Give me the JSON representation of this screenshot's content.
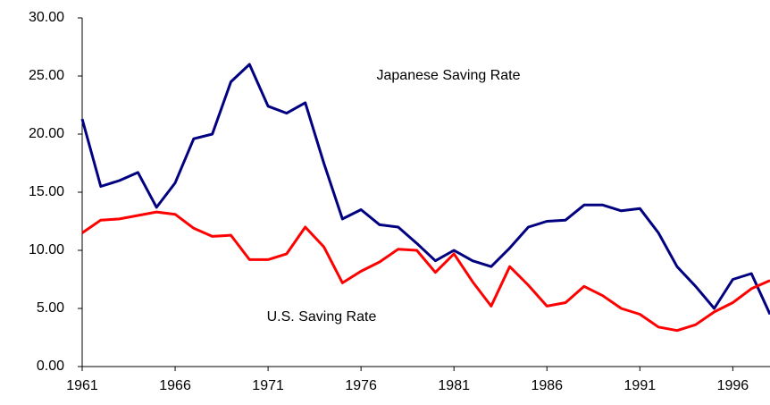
{
  "chart_data": {
    "type": "line",
    "x": [
      1961,
      1962,
      1963,
      1964,
      1965,
      1966,
      1967,
      1968,
      1969,
      1970,
      1971,
      1972,
      1973,
      1974,
      1975,
      1976,
      1977,
      1978,
      1979,
      1980,
      1981,
      1982,
      1983,
      1984,
      1985,
      1986,
      1987,
      1988,
      1989,
      1990,
      1991,
      1992,
      1993,
      1994,
      1995,
      1996,
      1997,
      1998
    ],
    "series": [
      {
        "name": "Japanese Saving Rate",
        "color": "#000080",
        "values": [
          21.3,
          15.5,
          16.0,
          16.7,
          13.7,
          15.8,
          19.6,
          20.0,
          24.5,
          26.0,
          22.4,
          21.8,
          22.7,
          17.5,
          12.7,
          13.5,
          12.2,
          12.0,
          10.6,
          9.1,
          10.0,
          9.1,
          8.6,
          10.2,
          12.0,
          12.5,
          12.6,
          13.9,
          13.9,
          13.4,
          13.6,
          11.5,
          8.6,
          6.9,
          5.0,
          7.5,
          8.0,
          4.5
        ]
      },
      {
        "name": "U.S. Saving Rate",
        "color": "#ff0000",
        "values": [
          11.5,
          12.6,
          12.7,
          13.0,
          13.3,
          13.1,
          11.9,
          11.2,
          11.3,
          9.2,
          9.2,
          9.7,
          12.0,
          10.3,
          7.2,
          8.2,
          9.0,
          10.1,
          10.0,
          8.1,
          9.7,
          7.3,
          5.2,
          8.6,
          7.0,
          5.2,
          5.5,
          6.9,
          6.1,
          5.0,
          4.5,
          3.4,
          3.1,
          3.6,
          4.7,
          5.5,
          6.7,
          7.4
        ]
      }
    ],
    "xlim": [
      1961,
      1998
    ],
    "xticks": [
      1961,
      1966,
      1971,
      1976,
      1981,
      1986,
      1991,
      1996
    ],
    "ylim": [
      0,
      30
    ],
    "yticks": [
      {
        "value": 0,
        "label": "0.00"
      },
      {
        "value": 5,
        "label": "5.00"
      },
      {
        "value": 10,
        "label": "10.00"
      },
      {
        "value": 15,
        "label": "15.00"
      },
      {
        "value": 20,
        "label": "20.00"
      },
      {
        "value": 25,
        "label": "25.00"
      },
      {
        "value": 30,
        "label": "30.00"
      }
    ]
  }
}
